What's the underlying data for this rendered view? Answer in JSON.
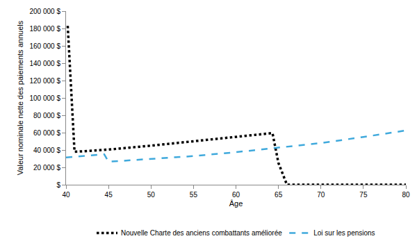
{
  "chart_data": {
    "type": "line",
    "x_label": "Âge",
    "y_label": "Valeur nominale nette des paiements annuels",
    "xlim": [
      40,
      80
    ],
    "xticks": [
      40,
      45,
      50,
      55,
      60,
      65,
      70,
      75,
      80
    ],
    "ylim": [
      0,
      200000
    ],
    "yticks": [
      {
        "value": 0,
        "label": "$"
      },
      {
        "value": 20000,
        "label": "20 000 $"
      },
      {
        "value": 40000,
        "label": "40 000 $"
      },
      {
        "value": 60000,
        "label": "60 000 $"
      },
      {
        "value": 80000,
        "label": "80 000 $"
      },
      {
        "value": 100000,
        "label": "100 000 $"
      },
      {
        "value": 120000,
        "label": "120 000 $"
      },
      {
        "value": 140000,
        "label": "140 000 $"
      },
      {
        "value": 160000,
        "label": "160 000 $"
      },
      {
        "value": 180000,
        "label": "180 000 $"
      },
      {
        "value": 200000,
        "label": "200 000 $"
      }
    ],
    "grid": false,
    "legend": "bottom",
    "series": [
      {
        "name": "Nouvelle Charte des anciens combattants améliorée",
        "color": "#000000",
        "line_style": "dotted",
        "x": [
          40.2,
          41,
          42,
          45,
          50,
          55,
          60,
          64.3,
          65,
          66,
          70,
          75,
          80
        ],
        "values": [
          183000,
          38000,
          38500,
          40500,
          45000,
          50000,
          55000,
          59500,
          25000,
          0,
          0,
          0,
          0
        ]
      },
      {
        "name": "Loi sur les pensions",
        "color": "#3fa9dc",
        "line_style": "dashed",
        "x": [
          40,
          44.5,
          45,
          50,
          55,
          60,
          65,
          70,
          75,
          80
        ],
        "values": [
          31500,
          35000,
          26500,
          29500,
          33000,
          37500,
          42500,
          48000,
          55000,
          62500
        ]
      }
    ]
  }
}
